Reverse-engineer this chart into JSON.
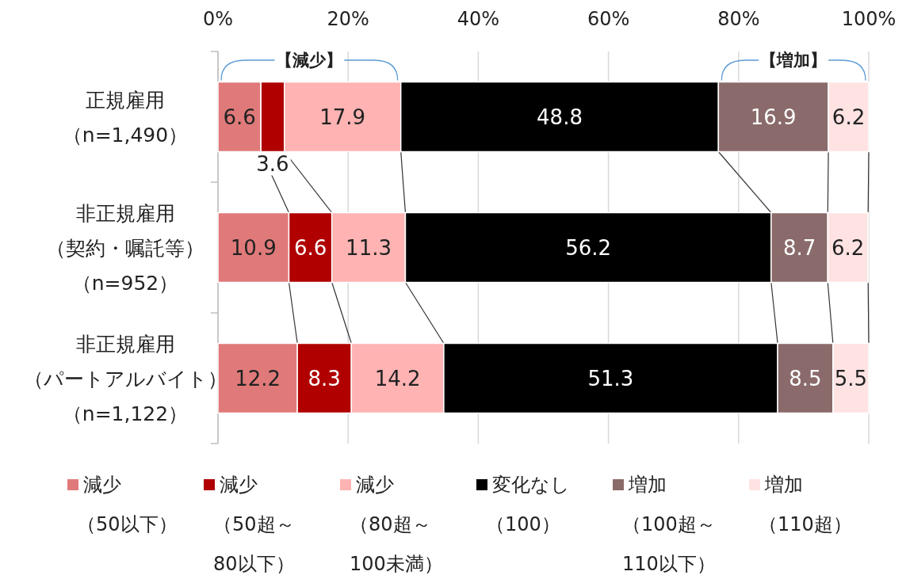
{
  "chart_data": {
    "type": "bar",
    "orientation": "horizontal",
    "stacked": true,
    "categories": [
      "正規雇用（n=1,490）",
      "非正規雇用（契約・嘱託等）（n=952）",
      "非正規雇用（パートアルバイト）（n=1,122）"
    ],
    "series": [
      {
        "name": "減少（50以下）",
        "color": "#e07a7a",
        "values": [
          6.6,
          10.9,
          12.2
        ]
      },
      {
        "name": "減少（50超～80以下）",
        "color": "#b00000",
        "values": [
          3.6,
          6.6,
          8.3
        ]
      },
      {
        "name": "減少（80超～100未満）",
        "color": "#ffb3b3",
        "values": [
          17.9,
          11.3,
          14.2
        ]
      },
      {
        "name": "変化なし（100）",
        "color": "#000000",
        "values": [
          48.8,
          56.2,
          51.3
        ]
      },
      {
        "name": "増加（100超～110以下）",
        "color": "#8a6a6a",
        "values": [
          16.9,
          8.7,
          8.5
        ]
      },
      {
        "name": "増加（110超）",
        "color": "#ffe3e3",
        "values": [
          6.2,
          6.2,
          5.5
        ]
      }
    ],
    "xlim": [
      0,
      100
    ],
    "xticks": [
      {
        "value": 0,
        "label": "0%"
      },
      {
        "value": 20,
        "label": "20%"
      },
      {
        "value": 40,
        "label": "40%"
      },
      {
        "value": 60,
        "label": "60%"
      },
      {
        "value": 80,
        "label": "80%"
      },
      {
        "value": 100,
        "label": "100%"
      }
    ],
    "grid": "x",
    "legend": "bottom",
    "data_labels": true,
    "annotations": [
      "【減少】",
      "【増加】"
    ]
  }
}
